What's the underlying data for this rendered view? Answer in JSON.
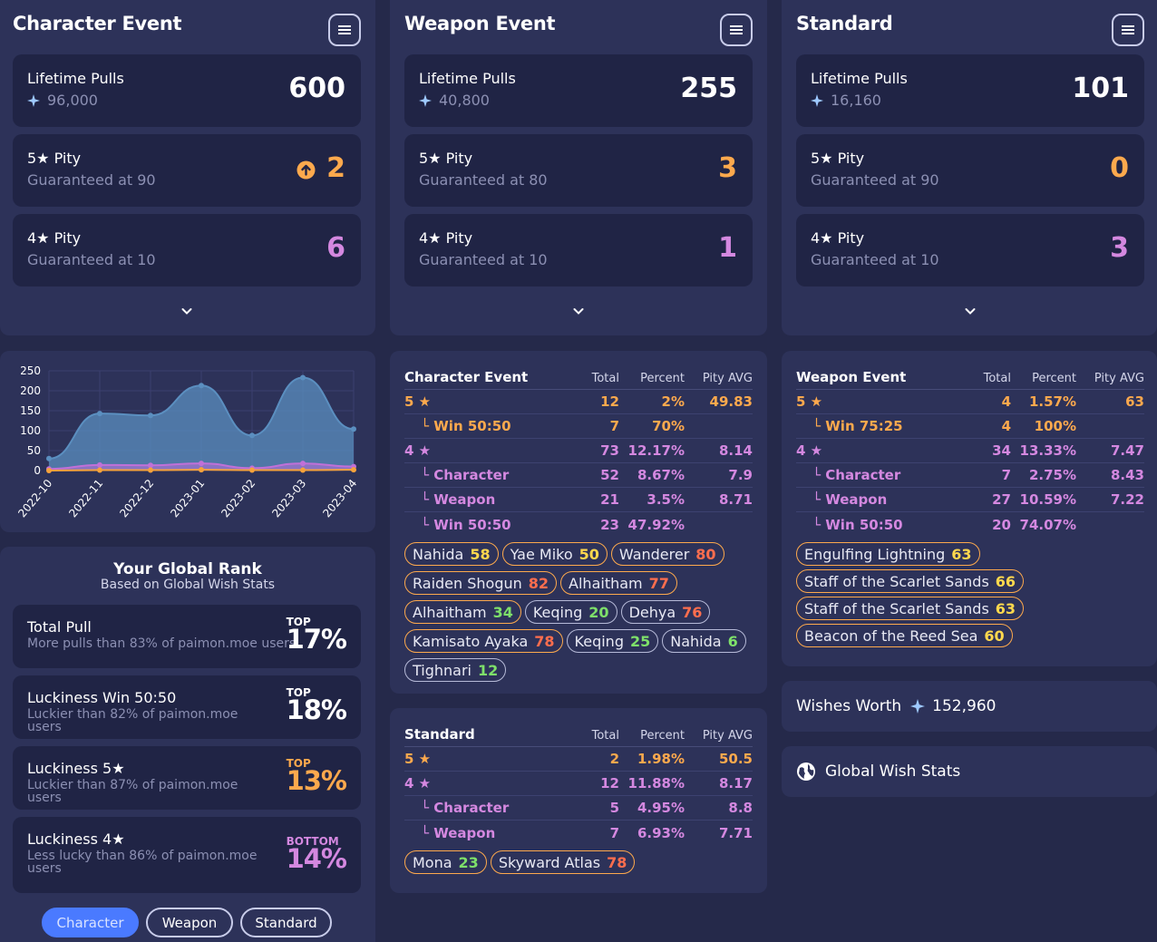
{
  "banners": [
    {
      "title": "Character Event",
      "lifetime_label": "Lifetime Pulls",
      "primogems": "96,000",
      "lifetime": "600",
      "pity5_label": "5★ Pity",
      "pity5_sub": "Guaranteed at 90",
      "pity5": "2",
      "pity4_label": "4★ Pity",
      "pity4_sub": "Guaranteed at 10",
      "pity4": "6"
    },
    {
      "title": "Weapon Event",
      "lifetime_label": "Lifetime Pulls",
      "primogems": "40,800",
      "lifetime": "255",
      "pity5_label": "5★ Pity",
      "pity5_sub": "Guaranteed at 80",
      "pity5": "3",
      "pity4_label": "4★ Pity",
      "pity4_sub": "Guaranteed at 10",
      "pity4": "1"
    },
    {
      "title": "Standard",
      "lifetime_label": "Lifetime Pulls",
      "primogems": "16,160",
      "lifetime": "101",
      "pity5_label": "5★ Pity",
      "pity5_sub": "Guaranteed at 90",
      "pity5": "0",
      "pity4_label": "4★ Pity",
      "pity4_sub": "Guaranteed at 10",
      "pity4": "3"
    }
  ],
  "chart_data": {
    "type": "area",
    "categories": [
      "2022-10",
      "2022-11",
      "2022-12",
      "2023-01",
      "2023-02",
      "2023-03",
      "2023-04"
    ],
    "ylim": [
      0,
      250
    ],
    "yticks": [
      "250",
      "200",
      "150",
      "100",
      "50",
      "0"
    ],
    "series": [
      {
        "color": "#5b8fc0",
        "values": [
          30,
          143,
          138,
          213,
          88,
          233,
          104
        ]
      },
      {
        "color": "#c070d8",
        "values": [
          4,
          14,
          13,
          18,
          6,
          18,
          10
        ]
      },
      {
        "color": "#f6a23c",
        "values": [
          0,
          1,
          1,
          2,
          1,
          1,
          2
        ]
      }
    ],
    "grid": true
  },
  "rank": {
    "title": "Your Global Rank",
    "subtitle": "Based on Global Wish Stats",
    "items": [
      {
        "label": "Total Pull",
        "desc": "More pulls than 83% of paimon.moe users",
        "tag": "TOP",
        "pct": "17%"
      },
      {
        "label": "Luckiness Win 50:50",
        "desc": "Luckier than 82% of paimon.moe users",
        "tag": "TOP",
        "pct": "18%"
      },
      {
        "label": "Luckiness 5★",
        "desc": "Luckier than 87% of paimon.moe users",
        "tag": "TOP",
        "pct": "13%"
      },
      {
        "label": "Luckiness 4★",
        "desc": "Less lucky than 86% of paimon.moe users",
        "tag": "BOTTOM",
        "pct": "14%"
      }
    ],
    "buttons": [
      "Character",
      "Weapon",
      "Standard"
    ]
  },
  "tables": {
    "headers": {
      "total": "Total",
      "percent": "Percent",
      "pity": "Pity AVG"
    },
    "character": {
      "title": "Character Event",
      "rows": [
        {
          "label": "5 ★",
          "total": "12",
          "percent": "2%",
          "pity": "49.83"
        },
        {
          "label": "└ Win 50:50",
          "total": "7",
          "percent": "70%",
          "pity": ""
        },
        {
          "label": "4 ★",
          "total": "73",
          "percent": "12.17%",
          "pity": "8.14"
        },
        {
          "label": "└ Character",
          "total": "52",
          "percent": "8.67%",
          "pity": "7.9"
        },
        {
          "label": "└ Weapon",
          "total": "21",
          "percent": "3.5%",
          "pity": "8.71"
        },
        {
          "label": "└ Win 50:50",
          "total": "23",
          "percent": "47.92%",
          "pity": ""
        }
      ],
      "tags": [
        {
          "name": "Nahida",
          "pity": "58"
        },
        {
          "name": "Yae Miko",
          "pity": "50"
        },
        {
          "name": "Wanderer",
          "pity": "80"
        },
        {
          "name": "Raiden Shogun",
          "pity": "82"
        },
        {
          "name": "Alhaitham",
          "pity": "77"
        },
        {
          "name": "Alhaitham",
          "pity": "34"
        },
        {
          "name": "Keqing",
          "pity": "20"
        },
        {
          "name": "Dehya",
          "pity": "76"
        },
        {
          "name": "Kamisato Ayaka",
          "pity": "78"
        },
        {
          "name": "Keqing",
          "pity": "25"
        },
        {
          "name": "Nahida",
          "pity": "6"
        },
        {
          "name": "Tighnari",
          "pity": "12"
        }
      ]
    },
    "weapon": {
      "title": "Weapon Event",
      "rows": [
        {
          "label": "5 ★",
          "total": "4",
          "percent": "1.57%",
          "pity": "63"
        },
        {
          "label": "└ Win 75:25",
          "total": "4",
          "percent": "100%",
          "pity": ""
        },
        {
          "label": "4 ★",
          "total": "34",
          "percent": "13.33%",
          "pity": "7.47"
        },
        {
          "label": "└ Character",
          "total": "7",
          "percent": "2.75%",
          "pity": "8.43"
        },
        {
          "label": "└ Weapon",
          "total": "27",
          "percent": "10.59%",
          "pity": "7.22"
        },
        {
          "label": "└ Win 50:50",
          "total": "20",
          "percent": "74.07%",
          "pity": ""
        }
      ],
      "tags": [
        {
          "name": "Engulfing Lightning",
          "pity": "63"
        },
        {
          "name": "Staff of the Scarlet Sands",
          "pity": "66"
        },
        {
          "name": "Staff of the Scarlet Sands",
          "pity": "63"
        },
        {
          "name": "Beacon of the Reed Sea",
          "pity": "60"
        }
      ]
    },
    "standard": {
      "title": "Standard",
      "rows": [
        {
          "label": "5 ★",
          "total": "2",
          "percent": "1.98%",
          "pity": "50.5"
        },
        {
          "label": "4 ★",
          "total": "12",
          "percent": "11.88%",
          "pity": "8.17"
        },
        {
          "label": "└ Character",
          "total": "5",
          "percent": "4.95%",
          "pity": "8.8"
        },
        {
          "label": "└ Weapon",
          "total": "7",
          "percent": "6.93%",
          "pity": "7.71"
        }
      ],
      "tags": [
        {
          "name": "Mona",
          "pity": "23"
        },
        {
          "name": "Skyward Atlas",
          "pity": "78"
        }
      ]
    }
  },
  "wishes_worth": {
    "label": "Wishes Worth",
    "value": "152,960"
  },
  "global_stats": {
    "label": "Global Wish Stats"
  }
}
